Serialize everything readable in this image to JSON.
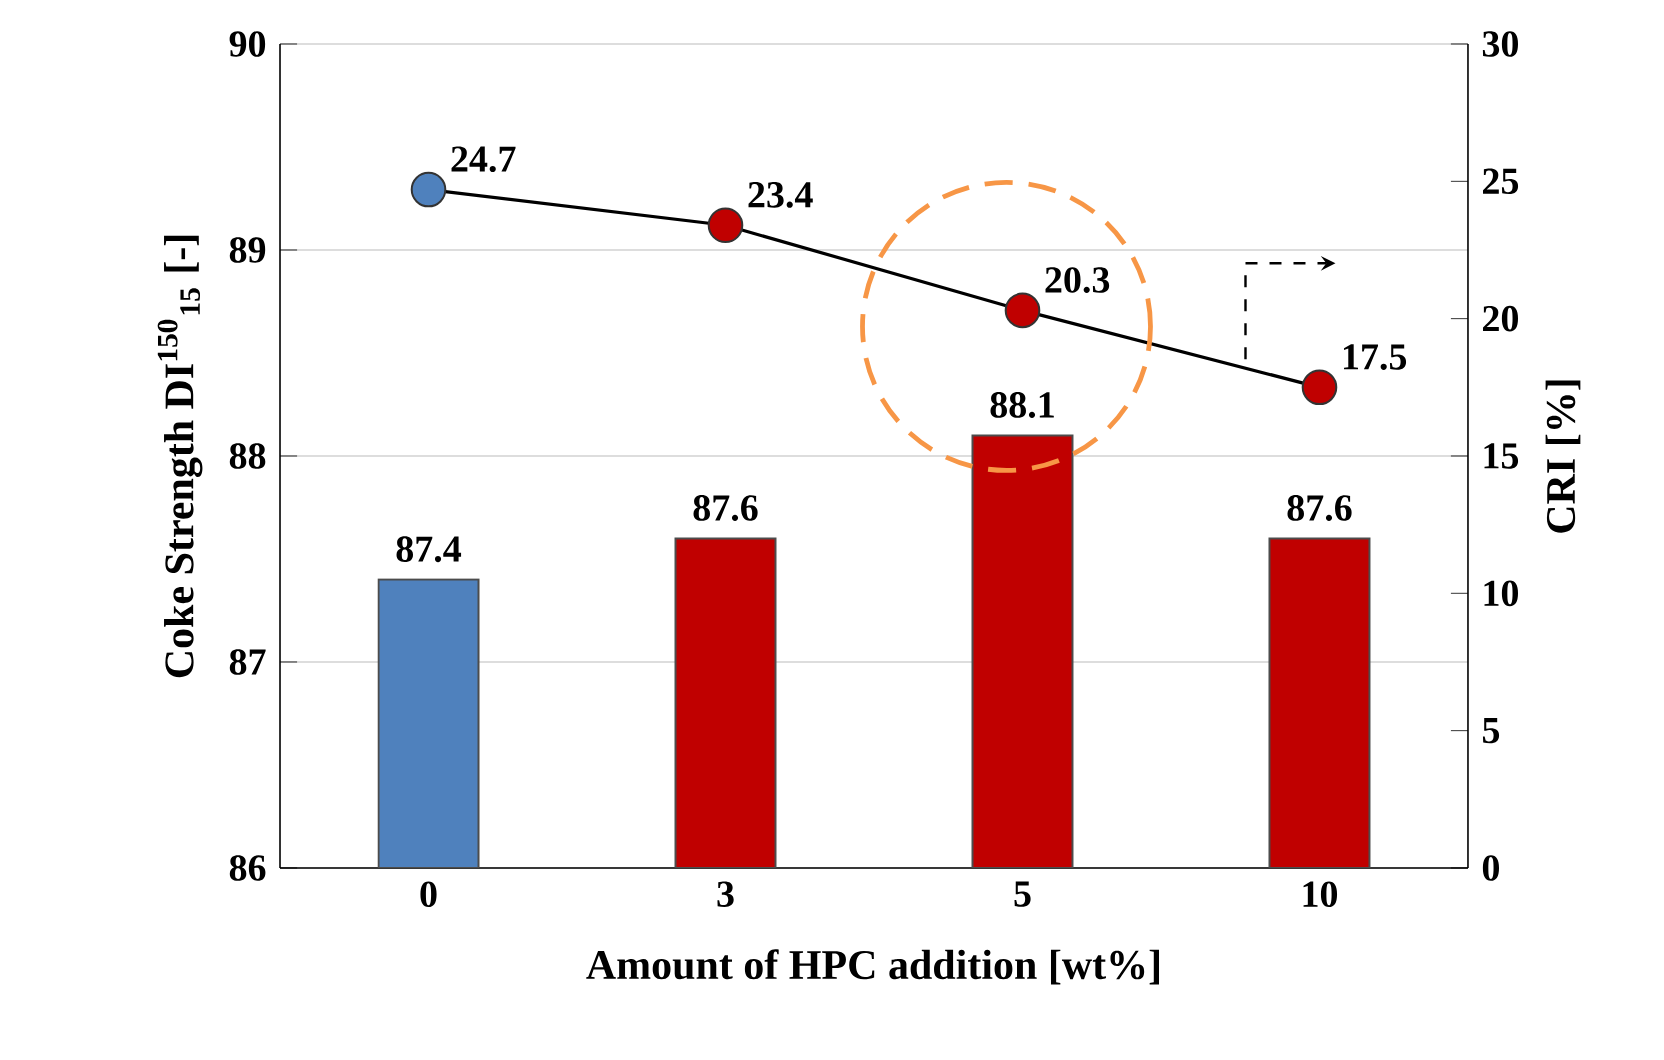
{
  "chart_data": {
    "type": "bar",
    "xlabel": "Amount of HPC addition [wt%]",
    "ylabel": "Coke Strength DI$^{150}$$_{15}$ [-]",
    "y2label": "CRI [%]",
    "categories": [
      "0",
      "3",
      "5",
      "10"
    ],
    "series": [
      {
        "colors": [
          "#4f81bd",
          "#c00000",
          "#c00000",
          "#c00000"
        ],
        "values": [
          87.4,
          87.6,
          88.1,
          87.6
        ]
      },
      {
        "type": "line",
        "axis": "y2",
        "color": "#000000",
        "colors": [
          "#4f81bd",
          "#c00000",
          "#c00000",
          "#c00000"
        ],
        "marker": "circle",
        "values": [
          24.7,
          23.4,
          20.3,
          17.5
        ]
      }
    ],
    "ylim": [
      86,
      90
    ],
    "yticks": [
      86,
      87,
      88,
      89,
      90
    ],
    "y2lim": [
      0,
      30
    ],
    "y2ticks": [
      0,
      5,
      10,
      15,
      20,
      25,
      30
    ],
    "grid": "y",
    "data_labels": true
  }
}
